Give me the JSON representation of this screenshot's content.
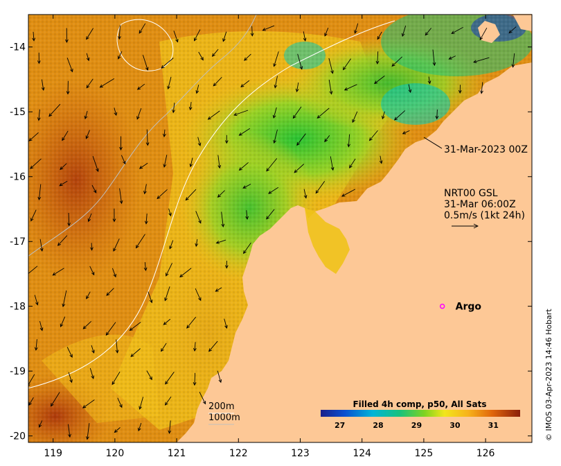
{
  "map": {
    "lon_min": 118.6,
    "lon_max": 126.75,
    "lat_min": -20.1,
    "lat_max": -13.5,
    "x_ticks": [
      "119",
      "120",
      "121",
      "122",
      "123",
      "124",
      "125",
      "126"
    ],
    "y_ticks": [
      "-14",
      "-15",
      "-16",
      "-17",
      "-18",
      "-19",
      "-20"
    ],
    "x_tick_values": [
      119,
      120,
      121,
      122,
      123,
      124,
      125,
      126
    ],
    "y_tick_values": [
      -14,
      -15,
      -16,
      -17,
      -18,
      -19,
      -20
    ]
  },
  "annotations": {
    "timestamp": "31-Mar-2023 00Z",
    "current_source": "NRT00 GSL",
    "current_time": "31-Mar 06:00Z",
    "current_scale": "0.5m/s (1kt 24h)",
    "argo_label": "Argo",
    "argo_lon": 125.3,
    "argo_lat": -18.0,
    "isobath_200": "200m",
    "isobath_1000": "1000m"
  },
  "colorbar": {
    "title": "Filled 4h comp, p50, All Sats",
    "ticks": [
      "27",
      "28",
      "29",
      "30",
      "31"
    ],
    "tick_values": [
      27,
      28,
      29,
      30,
      31
    ],
    "min": 26.5,
    "max": 31.7
  },
  "credit": "© IMOS 03-Apr-2023 14:46 Hobart",
  "colors": {
    "land": "#fdc896",
    "argo": "#ff00ff"
  }
}
